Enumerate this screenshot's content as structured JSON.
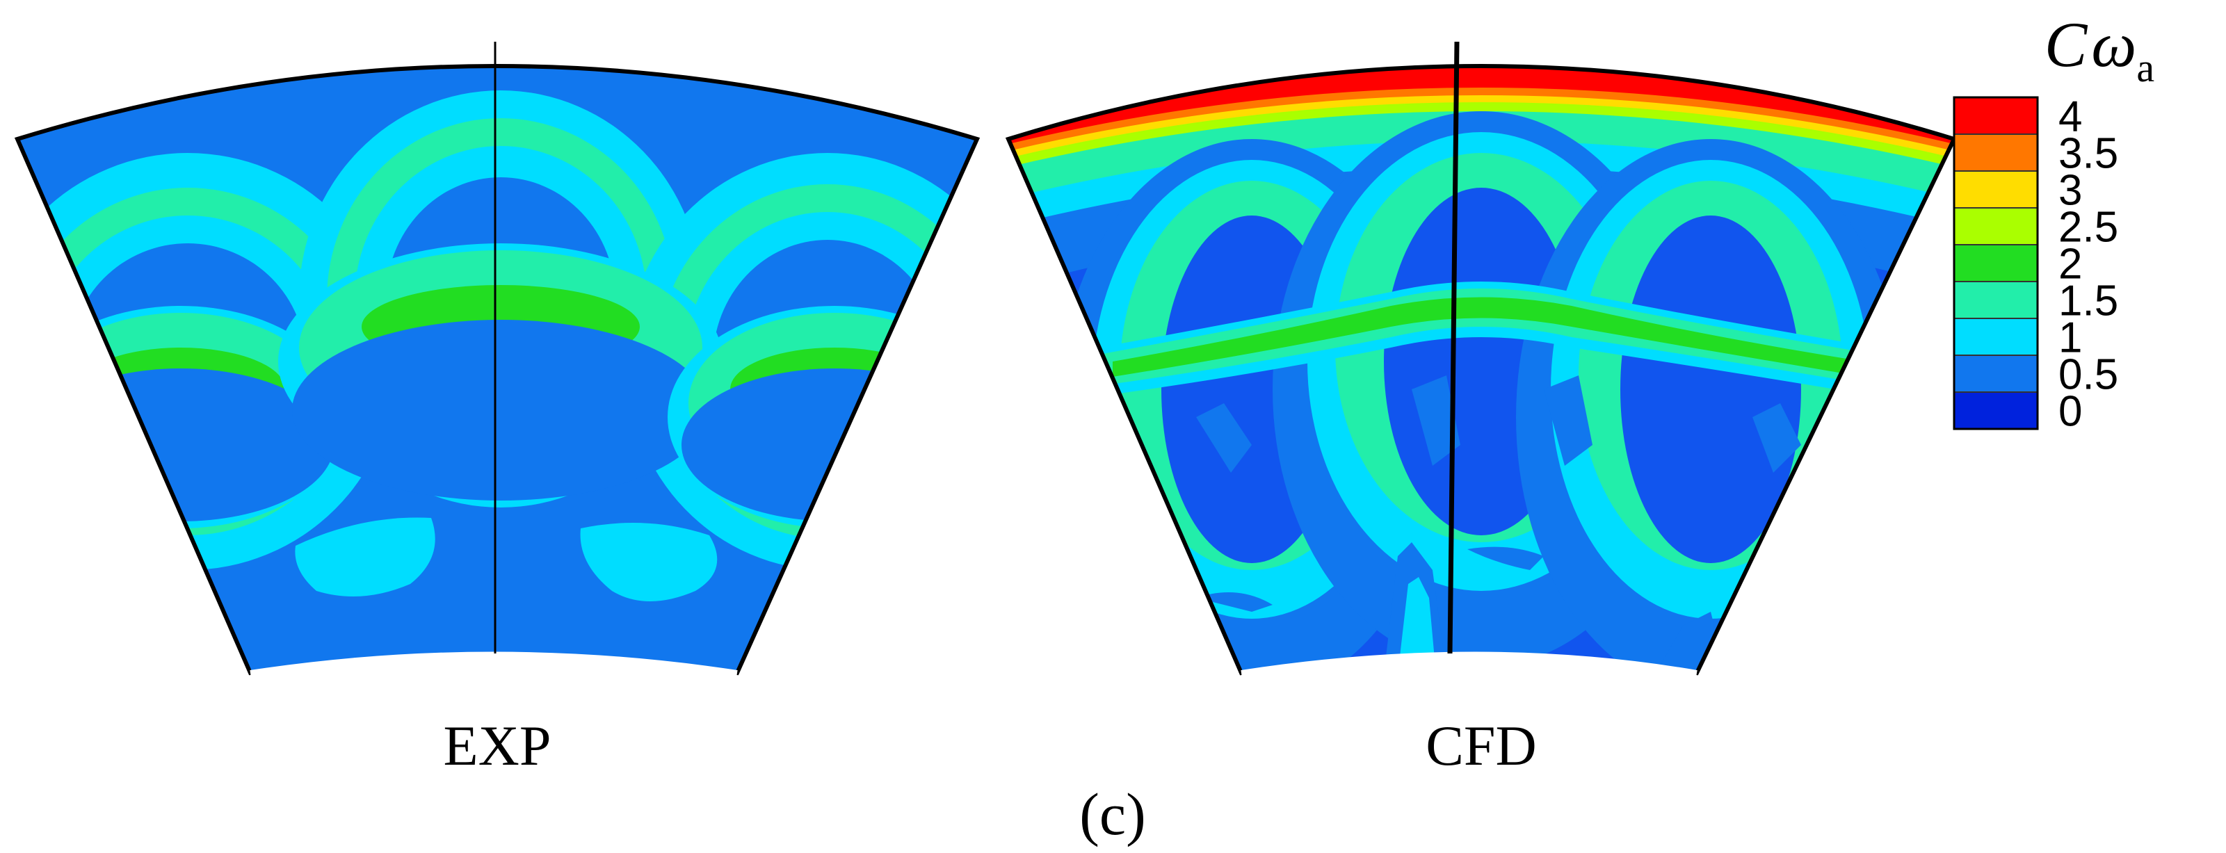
{
  "panels": {
    "exp_label": "EXP",
    "cfd_label": "CFD"
  },
  "subfigure_label": "(c)",
  "legend": {
    "title_main": "C",
    "title_symbol": "ω",
    "title_subscript": "a",
    "levels": [
      "4",
      "3.5",
      "3",
      "2.5",
      "2",
      "1.5",
      "1",
      "0.5",
      "0"
    ],
    "colors": [
      "#ff0000",
      "#ff7700",
      "#ffdd00",
      "#aaff00",
      "#22dd22",
      "#22eeaa",
      "#00ddff",
      "#1177ee",
      "#0022dd"
    ]
  },
  "colors": {
    "exp_background": "#1177ee",
    "cfd_background": "#1155ee"
  }
}
